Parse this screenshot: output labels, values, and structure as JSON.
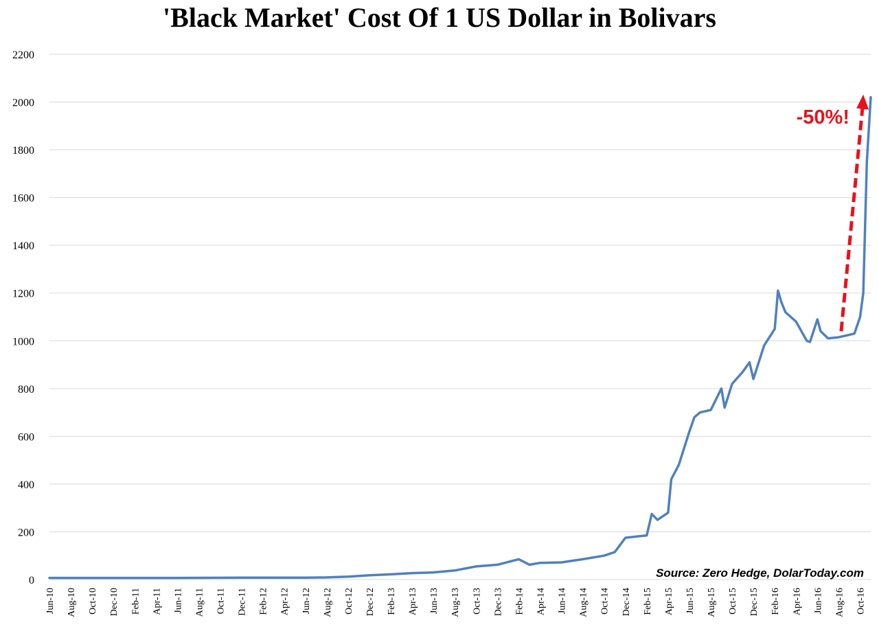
{
  "chart_data": {
    "type": "line",
    "title": "'Black Market' Cost Of 1 US Dollar in Bolivars",
    "xlabel": "",
    "ylabel": "",
    "ylim": [
      0,
      2200
    ],
    "y_ticks": [
      0,
      200,
      400,
      600,
      800,
      1000,
      1200,
      1400,
      1600,
      1800,
      2000,
      2200
    ],
    "x_ticks": [
      "Jun-10",
      "Aug-10",
      "Oct-10",
      "Dec-10",
      "Feb-11",
      "Apr-11",
      "Jun-11",
      "Aug-11",
      "Oct-11",
      "Dec-11",
      "Feb-12",
      "Apr-12",
      "Jun-12",
      "Aug-12",
      "Oct-12",
      "Dec-12",
      "Feb-13",
      "Apr-13",
      "Jun-13",
      "Aug-13",
      "Oct-13",
      "Dec-13",
      "Feb-14",
      "Apr-14",
      "Jun-14",
      "Aug-14",
      "Oct-14",
      "Dec-14",
      "Feb-15",
      "Apr-15",
      "Jun-15",
      "Aug-15",
      "Oct-15",
      "Dec-15",
      "Feb-16",
      "Apr-16",
      "Jun-16",
      "Aug-16",
      "Oct-16"
    ],
    "grid": true,
    "line_color": "#4f81bd",
    "series": [
      {
        "x": [
          "2010-06",
          "2010-12",
          "2011-06",
          "2011-12",
          "2012-06",
          "2012-08",
          "2012-10",
          "2012-12",
          "2013-02",
          "2013-04",
          "2013-06",
          "2013-08",
          "2013-10",
          "2013-12",
          "2014-02",
          "2014-03",
          "2014-04",
          "2014-06",
          "2014-08",
          "2014-10",
          "2014-11",
          "2014-12",
          "2015-01",
          "2015-02",
          "2015-02-15",
          "2015-03",
          "2015-04",
          "2015-04-10",
          "2015-05",
          "2015-06",
          "2015-06-15",
          "2015-07",
          "2015-08",
          "2015-09",
          "2015-09-10",
          "2015-10",
          "2015-11",
          "2015-11-20",
          "2015-12",
          "2016-01",
          "2016-02",
          "2016-02-10",
          "2016-02-20",
          "2016-03",
          "2016-04",
          "2016-05",
          "2016-05-10",
          "2016-06",
          "2016-06-10",
          "2016-07",
          "2016-08",
          "2016-09",
          "2016-09-15",
          "2016-10",
          "2016-10-10",
          "2016-10-20",
          "2016-11"
        ],
        "values": [
          7,
          7,
          7,
          8,
          8,
          9,
          12,
          18,
          22,
          27,
          30,
          38,
          55,
          62,
          85,
          62,
          70,
          72,
          85,
          100,
          115,
          175,
          180,
          185,
          275,
          250,
          280,
          420,
          480,
          620,
          680,
          700,
          710,
          800,
          720,
          820,
          870,
          910,
          840,
          980,
          1050,
          1210,
          1160,
          1120,
          1080,
          1000,
          995,
          1090,
          1040,
          1010,
          1015,
          1025,
          1030,
          1100,
          1200,
          1750,
          2020
        ]
      }
    ],
    "annotation": {
      "text": "-50%!",
      "color": "#e8121c"
    },
    "source": "Source: Zero Hedge, DolarToday.com"
  }
}
